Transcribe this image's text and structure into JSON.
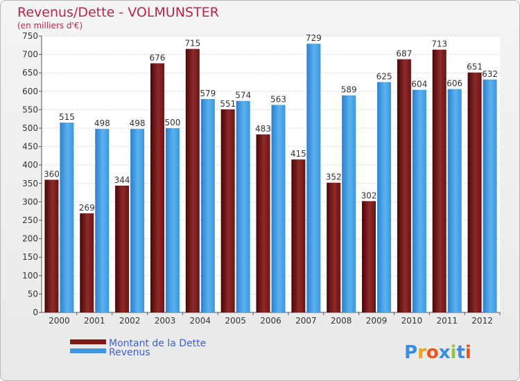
{
  "chart_data": {
    "type": "bar",
    "title": "Revenus/Dette - VOLMUNSTER",
    "subtitle": "(en milliers d'€)",
    "categories": [
      "2000",
      "2001",
      "2002",
      "2003",
      "2004",
      "2005",
      "2006",
      "2007",
      "2008",
      "2009",
      "2010",
      "2011",
      "2012"
    ],
    "series": [
      {
        "name": "Montant de la Dette",
        "color": "#7a1a1a",
        "values": [
          360,
          269,
          344,
          676,
          715,
          551,
          483,
          415,
          352,
          302,
          687,
          713,
          651
        ]
      },
      {
        "name": "Revenus",
        "color": "#3a97e0",
        "values": [
          515,
          498,
          498,
          500,
          579,
          574,
          563,
          729,
          589,
          625,
          604,
          606,
          632
        ]
      }
    ],
    "ylim": [
      0,
      750
    ],
    "ytick_step": 50,
    "grid": true,
    "legend_position": "bottom-left"
  },
  "logo": {
    "text": "Proxiti",
    "letters": [
      {
        "ch": "P",
        "color": "#3a8ee0"
      },
      {
        "ch": "r",
        "color": "#f0a020"
      },
      {
        "ch": "o",
        "color": "#e8541c"
      },
      {
        "ch": "x",
        "color": "#3a8ee0"
      },
      {
        "ch": "i",
        "color": "#8ec63f"
      },
      {
        "ch": "t",
        "color": "#3a8ee0"
      },
      {
        "ch": "i",
        "color": "#e8541c"
      }
    ]
  }
}
